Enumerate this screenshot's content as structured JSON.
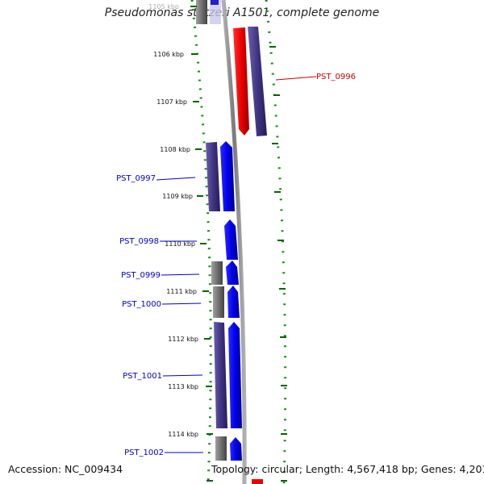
{
  "title": "Pseudomonas stutzeri A1501, complete genome",
  "footer": {
    "accession_label": "Accession:",
    "accession": "NC_009434",
    "topology_line": "Topology: circular; Length: 4,567,418 bp; Genes: 4,201"
  },
  "ruler": {
    "ticks": [
      "1105 kbp",
      "1106 kbp",
      "1107 kbp",
      "1108 kbp",
      "1109 kbp",
      "1110 kbp",
      "1111 kbp",
      "1112 kbp",
      "1113 kbp",
      "1114 kbp"
    ]
  },
  "genes": [
    {
      "label": "PST_0996",
      "strand": "reverse",
      "color": "#cc0000"
    },
    {
      "label": "PST_0997",
      "strand": "forward",
      "color": "#0000cc"
    },
    {
      "label": "PST_0998",
      "strand": "forward",
      "color": "#0000cc"
    },
    {
      "label": "PST_0999",
      "strand": "forward",
      "color": "#0000cc"
    },
    {
      "label": "PST_1000",
      "strand": "forward",
      "color": "#0000cc"
    },
    {
      "label": "PST_1001",
      "strand": "forward",
      "color": "#0000cc"
    },
    {
      "label": "PST_1002",
      "strand": "forward",
      "color": "#0000cc"
    }
  ],
  "colors": {
    "forward_gene": "#0000ff",
    "reverse_gene": "#ff0000",
    "cds_track": "#4a3f8a",
    "other_track": "#777777",
    "backbone": "#888888",
    "gc_dots": "#1a8a1a",
    "tick": "#006400"
  }
}
